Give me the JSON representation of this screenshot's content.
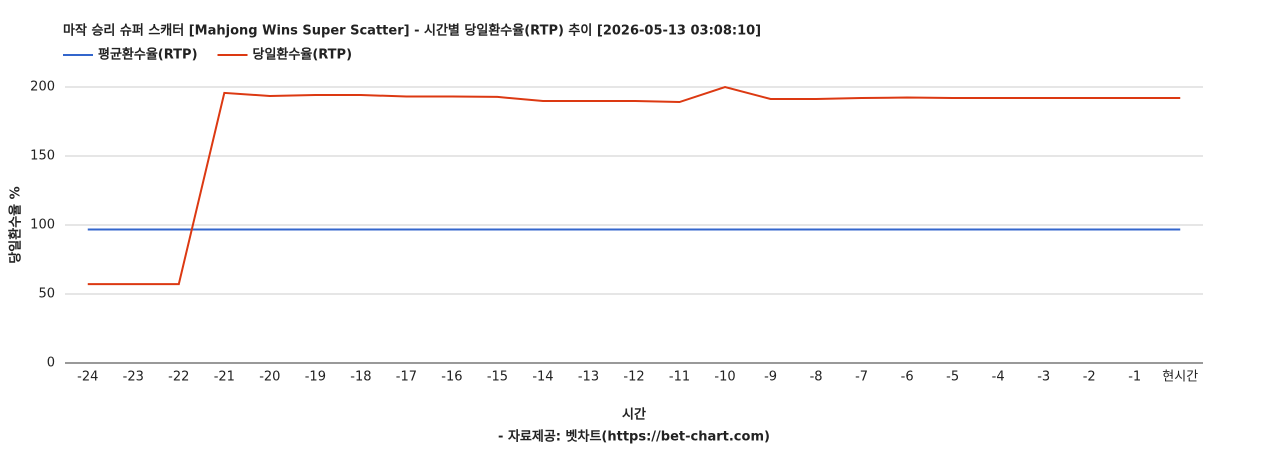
{
  "chart_data": {
    "type": "line",
    "title": "마작 승리 슈퍼 스캐터 [Mahjong Wins Super Scatter] - 시간별 당일환수율(RTP) 추이 [2026-05-13 03:08:10]",
    "x_label": "시간",
    "y_label": "당일환수율 %",
    "source": "- 자료제공: 벳차트(https://bet-chart.com)",
    "categories": [
      "-24",
      "-23",
      "-22",
      "-21",
      "-20",
      "-19",
      "-18",
      "-17",
      "-16",
      "-15",
      "-14",
      "-13",
      "-12",
      "-11",
      "-10",
      "-9",
      "-8",
      "-7",
      "-6",
      "-5",
      "-4",
      "-3",
      "-2",
      "-1",
      "현시간"
    ],
    "series": [
      {
        "name": "평균환수율(RTP)",
        "color": "#3366cc",
        "values": [
          96.7,
          96.7,
          96.7,
          96.7,
          96.7,
          96.7,
          96.7,
          96.7,
          96.7,
          96.7,
          96.7,
          96.7,
          96.7,
          96.7,
          96.7,
          96.7,
          96.7,
          96.7,
          96.7,
          96.7,
          96.7,
          96.7,
          96.7,
          96.7,
          96.7
        ]
      },
      {
        "name": "당일환수율(RTP)",
        "color": "#dc3912",
        "values": [
          57.2,
          57.2,
          57.2,
          195.7,
          193.5,
          194.2,
          194.2,
          193.1,
          193.1,
          192.8,
          189.9,
          189.9,
          189.9,
          189.1,
          200,
          191.3,
          191.3,
          192,
          192.4,
          192,
          192,
          192,
          192,
          192,
          192
        ]
      }
    ],
    "ylim": [
      0,
      200
    ],
    "yticks": [
      0,
      50,
      100,
      150,
      200
    ],
    "grid": true,
    "legend": "top-left"
  }
}
